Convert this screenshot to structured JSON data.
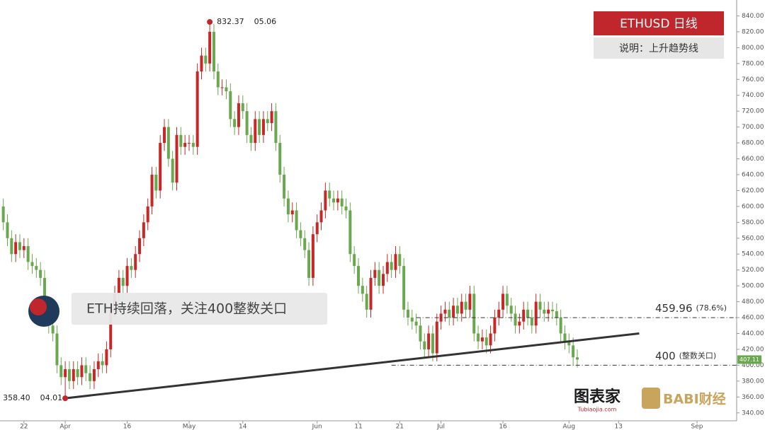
{
  "chart_data": {
    "type": "candlestick",
    "title": "ETHUSD  日线",
    "subtitle": "说明：上升趋势线",
    "callout": "ETH持续回落，关注400整数关口",
    "logos": [
      "图表家",
      "Tubiaojia.com",
      "BABI财经"
    ],
    "up_color": "#c62828",
    "down_color": "#6aa84f",
    "x": [
      76,
      77,
      78,
      79,
      80,
      81,
      82,
      83,
      84,
      85,
      86,
      87,
      88,
      89,
      90,
      91,
      92,
      93,
      94,
      95,
      96,
      97,
      98,
      99,
      100,
      101,
      102,
      103,
      104,
      105,
      106,
      107,
      108,
      109,
      110,
      111,
      112,
      113,
      114,
      115,
      116,
      117,
      118,
      119,
      120,
      121,
      122,
      123,
      124,
      125,
      126,
      127,
      128,
      129,
      130,
      131,
      132,
      133,
      134,
      135,
      136,
      137,
      138,
      139,
      140,
      141,
      142,
      143,
      144,
      145,
      146,
      147,
      148,
      149,
      150,
      151,
      152,
      153,
      154,
      155,
      156,
      157,
      158,
      159,
      160,
      161,
      162,
      163,
      164,
      165,
      166,
      167,
      168,
      169,
      170,
      171,
      172,
      173,
      174,
      175,
      176,
      177,
      178,
      179,
      180,
      181,
      182,
      183,
      184,
      185,
      186,
      187,
      188,
      189,
      190,
      191,
      192,
      193,
      194,
      195,
      196,
      197,
      198,
      199,
      200,
      201,
      202,
      203,
      204,
      205,
      206,
      207,
      208,
      209,
      210,
      211,
      212,
      213,
      214,
      215
    ],
    "open": [
      600,
      580,
      560,
      540,
      555,
      545,
      550,
      530,
      525,
      520,
      510,
      470,
      450,
      440,
      400,
      385,
      395,
      380,
      395,
      385,
      400,
      390,
      380,
      395,
      405,
      400,
      420,
      470,
      490,
      510,
      500,
      525,
      520,
      540,
      560,
      580,
      600,
      640,
      620,
      680,
      700,
      660,
      630,
      690,
      675,
      680,
      680,
      675,
      770,
      790,
      780,
      820,
      770,
      750,
      750,
      745,
      710,
      700,
      730,
      720,
      690,
      680,
      710,
      690,
      710,
      705,
      720,
      680,
      640,
      610,
      590,
      595,
      570,
      560,
      545,
      510,
      565,
      580,
      595,
      620,
      610,
      605,
      610,
      600,
      595,
      540,
      525,
      500,
      490,
      470,
      510,
      520,
      500,
      515,
      530,
      520,
      540,
      525,
      470,
      460,
      455,
      450,
      430,
      420,
      440,
      415,
      455,
      465,
      470,
      460,
      475,
      465,
      480,
      470,
      490,
      440,
      430,
      435,
      425,
      440,
      460,
      470,
      490,
      475,
      465,
      450,
      455,
      470,
      460,
      450,
      480,
      470,
      465,
      470,
      468,
      460,
      440,
      430,
      425,
      410
    ],
    "high": [
      610,
      590,
      570,
      565,
      565,
      560,
      560,
      540,
      535,
      530,
      520,
      480,
      460,
      450,
      410,
      405,
      405,
      405,
      405,
      410,
      410,
      400,
      405,
      415,
      415,
      430,
      480,
      500,
      520,
      520,
      535,
      535,
      550,
      570,
      590,
      610,
      650,
      650,
      690,
      710,
      710,
      670,
      700,
      700,
      690,
      690,
      690,
      780,
      800,
      800,
      832.37,
      830,
      780,
      760,
      760,
      755,
      720,
      740,
      740,
      730,
      700,
      720,
      720,
      720,
      720,
      730,
      730,
      690,
      650,
      620,
      605,
      605,
      580,
      570,
      555,
      575,
      590,
      605,
      630,
      630,
      620,
      620,
      620,
      610,
      605,
      550,
      535,
      510,
      500,
      520,
      530,
      530,
      525,
      540,
      540,
      550,
      550,
      535,
      480,
      470,
      465,
      460,
      440,
      450,
      450,
      465,
      475,
      480,
      480,
      485,
      485,
      490,
      490,
      500,
      500,
      450,
      445,
      445,
      450,
      470,
      480,
      500,
      500,
      485,
      475,
      465,
      480,
      480,
      470,
      490,
      490,
      480,
      480,
      480,
      478,
      470,
      450,
      440,
      435,
      420
    ],
    "low": [
      570,
      550,
      530,
      530,
      535,
      535,
      520,
      515,
      510,
      500,
      460,
      440,
      430,
      390,
      375,
      358.4,
      370,
      370,
      375,
      375,
      380,
      370,
      370,
      385,
      390,
      390,
      410,
      460,
      480,
      490,
      490,
      510,
      510,
      530,
      550,
      570,
      590,
      610,
      610,
      670,
      650,
      620,
      620,
      665,
      665,
      670,
      665,
      665,
      760,
      770,
      770,
      760,
      740,
      740,
      735,
      700,
      690,
      690,
      710,
      680,
      670,
      670,
      680,
      680,
      695,
      695,
      670,
      630,
      600,
      580,
      580,
      560,
      550,
      535,
      500,
      500,
      555,
      570,
      585,
      600,
      595,
      595,
      590,
      585,
      530,
      515,
      490,
      480,
      460,
      460,
      500,
      490,
      490,
      505,
      510,
      510,
      515,
      460,
      450,
      445,
      440,
      420,
      410,
      410,
      405,
      405,
      445,
      455,
      450,
      450,
      455,
      455,
      460,
      460,
      430,
      420,
      420,
      415,
      415,
      430,
      450,
      460,
      465,
      455,
      440,
      440,
      445,
      450,
      440,
      440,
      460,
      455,
      455,
      458,
      450,
      430,
      420,
      415,
      400,
      397
    ],
    "close": [
      580,
      560,
      540,
      555,
      545,
      550,
      530,
      525,
      520,
      510,
      470,
      450,
      440,
      400,
      385,
      395,
      380,
      395,
      385,
      400,
      390,
      380,
      395,
      405,
      400,
      420,
      470,
      490,
      510,
      500,
      525,
      520,
      540,
      560,
      580,
      600,
      640,
      620,
      680,
      700,
      660,
      630,
      690,
      675,
      680,
      680,
      675,
      770,
      790,
      780,
      820,
      770,
      750,
      750,
      745,
      710,
      700,
      730,
      720,
      690,
      680,
      710,
      690,
      710,
      705,
      720,
      680,
      640,
      610,
      590,
      595,
      570,
      560,
      545,
      510,
      565,
      580,
      595,
      620,
      610,
      605,
      610,
      600,
      595,
      540,
      525,
      500,
      490,
      470,
      510,
      520,
      500,
      515,
      530,
      520,
      540,
      525,
      470,
      460,
      455,
      450,
      430,
      420,
      440,
      415,
      455,
      465,
      470,
      460,
      475,
      465,
      480,
      470,
      490,
      440,
      430,
      435,
      425,
      440,
      460,
      470,
      490,
      475,
      465,
      450,
      455,
      470,
      460,
      450,
      480,
      470,
      465,
      470,
      468,
      460,
      440,
      430,
      425,
      410,
      407.11
    ],
    "annotations": [
      {
        "index": 50,
        "label": "832.37",
        "date": "05.06"
      },
      {
        "index": 15,
        "label": "358.40",
        "date": "04.01"
      }
    ],
    "trendline": {
      "x": [
        91,
        230
      ],
      "values": [
        358.4,
        440
      ]
    },
    "levels": [
      {
        "value": 459.96,
        "label": "459.96",
        "note": "(78.6%)",
        "x_from": 176
      },
      {
        "value": 400,
        "label": "400",
        "note": "(整数关口)",
        "x_from": 170
      }
    ],
    "xlim": [
      75.2,
      253.6
    ],
    "xticks": [
      {
        "value": 81,
        "label": "22"
      },
      {
        "value": 91,
        "label": "Apr"
      },
      {
        "value": 106,
        "label": "16"
      },
      {
        "value": 121,
        "label": "May"
      },
      {
        "value": 134,
        "label": "14"
      },
      {
        "value": 152,
        "label": "Jun"
      },
      {
        "value": 162,
        "label": "11"
      },
      {
        "value": 172,
        "label": "21"
      },
      {
        "value": 182,
        "label": "Jul"
      },
      {
        "value": 197,
        "label": "16"
      },
      {
        "value": 213,
        "label": "Aug"
      },
      {
        "value": 225,
        "label": "13"
      },
      {
        "value": 244,
        "label": "Sep"
      }
    ],
    "ylim": [
      330,
      860
    ],
    "yticks": [
      {
        "value": 340,
        "label": "340.00"
      },
      {
        "value": 360,
        "label": "360.00"
      },
      {
        "value": 380,
        "label": "380.00"
      },
      {
        "value": 400,
        "label": "400.00"
      },
      {
        "value": 420,
        "label": "420.00"
      },
      {
        "value": 440,
        "label": "440.00"
      },
      {
        "value": 460,
        "label": "460.00"
      },
      {
        "value": 480,
        "label": "480.00"
      },
      {
        "value": 500,
        "label": "500.00"
      },
      {
        "value": 520,
        "label": "520.00"
      },
      {
        "value": 540,
        "label": "540.00"
      },
      {
        "value": 560,
        "label": "560.00"
      },
      {
        "value": 580,
        "label": "580.00"
      },
      {
        "value": 600,
        "label": "600.00"
      },
      {
        "value": 620,
        "label": "620.00"
      },
      {
        "value": 640,
        "label": "640.00"
      },
      {
        "value": 660,
        "label": "660.00"
      },
      {
        "value": 680,
        "label": "680.00"
      },
      {
        "value": 700,
        "label": "700.00"
      },
      {
        "value": 720,
        "label": "720.00"
      },
      {
        "value": 740,
        "label": "740.00"
      },
      {
        "value": 760,
        "label": "760.00"
      },
      {
        "value": 780,
        "label": "780.00"
      },
      {
        "value": 800,
        "label": "800.00"
      },
      {
        "value": 820,
        "label": "820.00"
      },
      {
        "value": 840,
        "label": "840.00"
      }
    ],
    "grid": false
  }
}
